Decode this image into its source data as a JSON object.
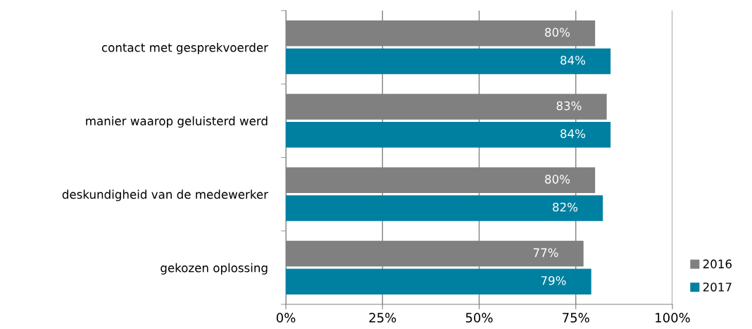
{
  "chart_data": {
    "type": "bar",
    "orientation": "horizontal",
    "categories": [
      "contact met gesprekvoerder",
      "manier waarop geluisterd werd",
      "deskundigheid van de medewerker",
      "gekozen oplossing"
    ],
    "series": [
      {
        "name": "2016",
        "color": "#808080",
        "values": [
          80,
          83,
          80,
          77
        ],
        "value_labels": [
          "80%",
          "83%",
          "80%",
          "77%"
        ]
      },
      {
        "name": "2017",
        "color": "#0080a0",
        "values": [
          84,
          84,
          82,
          79
        ],
        "value_labels": [
          "84%",
          "84%",
          "82%",
          "79%"
        ]
      }
    ],
    "xlim": [
      0,
      100
    ],
    "xticks": [
      {
        "value": 0,
        "label": "0%"
      },
      {
        "value": 25,
        "label": "25%"
      },
      {
        "value": 50,
        "label": "50%"
      },
      {
        "value": 75,
        "label": "75%"
      },
      {
        "value": 100,
        "label": "100%"
      }
    ],
    "grid": "x",
    "legend": "bottom right"
  }
}
